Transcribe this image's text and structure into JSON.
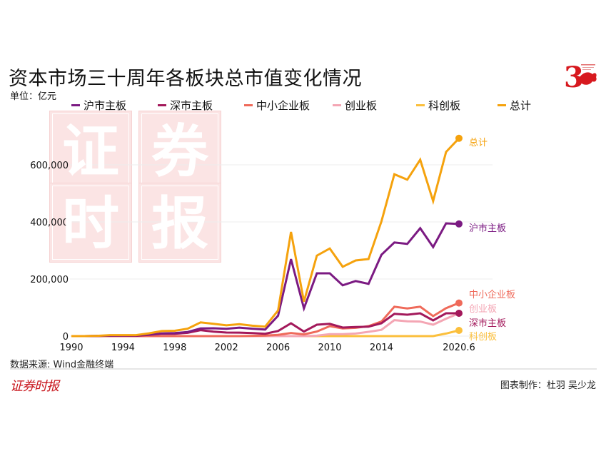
{
  "title": "资本市场三十周年各板块总市值变化情况",
  "unit": "单位：亿元",
  "source": "数据来源: Wind金融终端",
  "brand": "证券时报",
  "credit": "图表制作：杜羽 吴少龙",
  "watermark": [
    "证",
    "券",
    "时",
    "报"
  ],
  "logo": {
    "numeral": "3",
    "color": "#d7191f"
  },
  "chart_data": {
    "type": "line",
    "title": "资本市场三十周年各板块总市值变化情况",
    "ylabel": "单位：亿元",
    "xlabel": "",
    "ylim": [
      0,
      700000
    ],
    "yticks": [
      0,
      200000,
      400000,
      600000
    ],
    "ytick_labels": [
      "0",
      "200,000",
      "400,000",
      "600,000"
    ],
    "categories": [
      "1990",
      "1991",
      "1992",
      "1993",
      "1994",
      "1995",
      "1996",
      "1997",
      "1998",
      "1999",
      "2000",
      "2001",
      "2002",
      "2003",
      "2004",
      "2005",
      "2006",
      "2007",
      "2008",
      "2009",
      "2010",
      "2011",
      "2012",
      "2013",
      "2014",
      "2015",
      "2016",
      "2017",
      "2018",
      "2019",
      "2020.6"
    ],
    "xtick_labels": [
      {
        "index": 0,
        "label": "1990"
      },
      {
        "index": 4,
        "label": "1994"
      },
      {
        "index": 8,
        "label": "1998"
      },
      {
        "index": 12,
        "label": "2002"
      },
      {
        "index": 16,
        "label": "2006"
      },
      {
        "index": 20,
        "label": "2010"
      },
      {
        "index": 24,
        "label": "2014"
      },
      {
        "index": 30,
        "label": "2020.6"
      }
    ],
    "grid": true,
    "legend": "top",
    "series": [
      {
        "name": "沪市主板",
        "color": "#7b1a82",
        "values": [
          0,
          0,
          500,
          1500,
          2000,
          2500,
          5500,
          9200,
          10600,
          14500,
          26900,
          27600,
          25400,
          29800,
          26000,
          23100,
          71600,
          269800,
          97300,
          220000,
          220000,
          178000,
          193000,
          183000,
          285000,
          328000,
          323000,
          378000,
          312000,
          395000,
          393000
        ]
      },
      {
        "name": "深市主板",
        "color": "#a3195b",
        "values": [
          0,
          0,
          500,
          2000,
          1400,
          1000,
          4300,
          8500,
          8200,
          11500,
          21000,
          15500,
          12400,
          12300,
          10400,
          8300,
          18000,
          45000,
          16000,
          40000,
          43000,
          30000,
          32000,
          33000,
          45000,
          78000,
          75000,
          80000,
          55000,
          80000,
          80000
        ]
      },
      {
        "name": "中小企业板",
        "color": "#ef6a5a",
        "values": [
          0,
          0,
          0,
          0,
          0,
          0,
          0,
          0,
          0,
          0,
          0,
          0,
          0,
          0,
          1000,
          1800,
          4500,
          11000,
          6000,
          16000,
          35000,
          27000,
          29000,
          35000,
          51000,
          103000,
          97000,
          103000,
          70000,
          98000,
          116000
        ]
      },
      {
        "name": "创业板",
        "color": "#f4a6b4",
        "values": [
          0,
          0,
          0,
          0,
          0,
          0,
          0,
          0,
          0,
          0,
          0,
          0,
          0,
          0,
          0,
          0,
          0,
          0,
          0,
          1500,
          7000,
          7000,
          9000,
          15000,
          22000,
          56000,
          52000,
          51000,
          40000,
          61000,
          80000
        ]
      },
      {
        "name": "科创板",
        "color": "#fbbf3c",
        "values": [
          0,
          0,
          0,
          0,
          0,
          0,
          0,
          0,
          0,
          0,
          0,
          0,
          0,
          0,
          0,
          0,
          0,
          0,
          0,
          0,
          0,
          0,
          0,
          0,
          0,
          0,
          0,
          0,
          0,
          9000,
          20000
        ]
      },
      {
        "name": "总计",
        "color": "#f5a20d",
        "values": [
          0,
          0,
          1000,
          3500,
          3400,
          3500,
          9800,
          17700,
          18800,
          26000,
          48000,
          43100,
          37800,
          42100,
          36400,
          33200,
          90000,
          365000,
          121000,
          282000,
          307000,
          243000,
          265000,
          270000,
          402000,
          567000,
          548000,
          618000,
          473000,
          645000,
          693000
        ]
      }
    ],
    "end_labels": [
      {
        "series": "总计",
        "text": "总计",
        "color": "#f5a20d"
      },
      {
        "series": "沪市主板",
        "text": "沪市主板",
        "color": "#7b1a82"
      },
      {
        "series": "中小企业板",
        "text": "中小企业板",
        "color": "#ef6a5a"
      },
      {
        "series": "创业板",
        "text": "创业板",
        "color": "#f4a6b4"
      },
      {
        "series": "深市主板",
        "text": "深市主板",
        "color": "#a3195b"
      },
      {
        "series": "科创板",
        "text": "科创板",
        "color": "#fbbf3c"
      }
    ]
  }
}
